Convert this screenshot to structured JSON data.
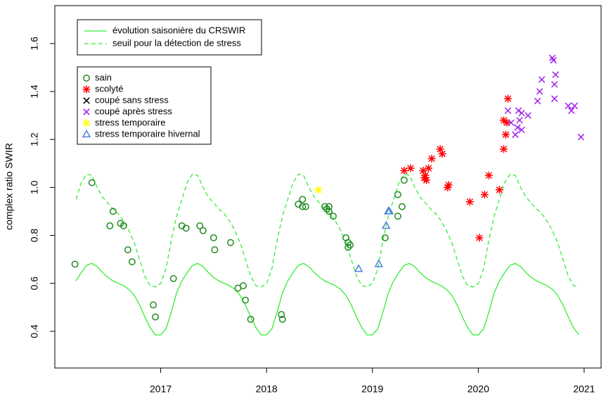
{
  "chart_data": {
    "type": "line",
    "ylabel": "complex ratio SWIR",
    "xlim": [
      2016.0,
      2021.16
    ],
    "ylim": [
      0.247,
      1.758
    ],
    "xticks": [
      2017,
      2018,
      2019,
      2020,
      2021
    ],
    "yticks": [
      0.4,
      0.6,
      0.8,
      {
        "value": 1,
        "label": "1.0"
      },
      1.2,
      1.4,
      1.6
    ],
    "x": [
      2016.2,
      2016.25,
      2016.3,
      2016.35,
      2016.4,
      2016.45,
      2016.5,
      2016.55,
      2016.6,
      2016.65,
      2016.7,
      2016.75,
      2016.8,
      2016.85,
      2016.9,
      2016.95,
      2017,
      2017.05,
      2017.1,
      2017.15,
      2017.2,
      2017.25,
      2017.3,
      2017.35,
      2017.4,
      2017.45,
      2017.5,
      2017.55,
      2017.6,
      2017.65,
      2017.7,
      2017.75,
      2017.8,
      2017.85,
      2017.9,
      2017.95,
      2018,
      2018.05,
      2018.1,
      2018.15,
      2018.2,
      2018.25,
      2018.3,
      2018.35,
      2018.4,
      2018.45,
      2018.5,
      2018.55,
      2018.6,
      2018.65,
      2018.7,
      2018.75,
      2018.8,
      2018.85,
      2018.9,
      2018.95,
      2019,
      2019.05,
      2019.1,
      2019.15,
      2019.2,
      2019.25,
      2019.3,
      2019.35,
      2019.4,
      2019.45,
      2019.5,
      2019.55,
      2019.6,
      2019.65,
      2019.7,
      2019.75,
      2019.8,
      2019.85,
      2019.9,
      2019.95,
      2020,
      2020.05,
      2020.1,
      2020.15,
      2020.2,
      2020.25,
      2020.3,
      2020.35,
      2020.4,
      2020.45,
      2020.5,
      2020.55,
      2020.6,
      2020.65,
      2020.7,
      2020.75,
      2020.8,
      2020.85,
      2020.9,
      2020.95
    ],
    "series": [
      {
        "name": "évolution saisonière du CRSWIR",
        "type": "line",
        "dash": false,
        "color": "#33ee33",
        "values": [
          0.61,
          0.645,
          0.675,
          0.683,
          0.67,
          0.645,
          0.625,
          0.61,
          0.6,
          0.59,
          0.575,
          0.55,
          0.51,
          0.46,
          0.415,
          0.385,
          0.385,
          0.41,
          0.48,
          0.56,
          0.61,
          0.645,
          0.675,
          0.683,
          0.67,
          0.645,
          0.625,
          0.61,
          0.6,
          0.59,
          0.575,
          0.55,
          0.51,
          0.46,
          0.415,
          0.385,
          0.385,
          0.41,
          0.48,
          0.56,
          0.61,
          0.645,
          0.675,
          0.683,
          0.67,
          0.645,
          0.625,
          0.61,
          0.6,
          0.59,
          0.575,
          0.55,
          0.51,
          0.46,
          0.415,
          0.385,
          0.385,
          0.41,
          0.48,
          0.56,
          0.61,
          0.645,
          0.675,
          0.683,
          0.67,
          0.645,
          0.625,
          0.61,
          0.6,
          0.59,
          0.575,
          0.55,
          0.51,
          0.46,
          0.415,
          0.385,
          0.385,
          0.41,
          0.48,
          0.56,
          0.61,
          0.645,
          0.675,
          0.683,
          0.67,
          0.645,
          0.625,
          0.61,
          0.6,
          0.59,
          0.575,
          0.55,
          0.51,
          0.46,
          0.415,
          0.385
        ]
      },
      {
        "name": "seuil pour la détection de stress",
        "type": "line",
        "dash": true,
        "color": "#33ee33",
        "values": [
          0.95,
          1.02,
          1.055,
          1.05,
          1.0,
          0.96,
          0.935,
          0.91,
          0.89,
          0.86,
          0.82,
          0.77,
          0.7,
          0.63,
          0.59,
          0.585,
          0.6,
          0.66,
          0.78,
          0.88,
          0.95,
          1.02,
          1.055,
          1.05,
          1.0,
          0.96,
          0.935,
          0.91,
          0.89,
          0.86,
          0.82,
          0.77,
          0.7,
          0.63,
          0.59,
          0.585,
          0.6,
          0.66,
          0.78,
          0.88,
          0.95,
          1.02,
          1.055,
          1.05,
          1.0,
          0.96,
          0.935,
          0.91,
          0.89,
          0.86,
          0.82,
          0.77,
          0.7,
          0.63,
          0.59,
          0.585,
          0.6,
          0.66,
          0.78,
          0.88,
          0.95,
          1.02,
          1.055,
          1.05,
          1.0,
          0.96,
          0.935,
          0.91,
          0.89,
          0.86,
          0.82,
          0.77,
          0.7,
          0.63,
          0.59,
          0.585,
          0.6,
          0.66,
          0.78,
          0.88,
          0.95,
          1.02,
          1.055,
          1.05,
          1.0,
          0.96,
          0.935,
          0.91,
          0.89,
          0.86,
          0.82,
          0.77,
          0.7,
          0.63,
          0.59,
          0.585
        ]
      },
      {
        "name": "sain",
        "type": "scatter",
        "marker": "circle",
        "color": "#228b22",
        "x": [
          2016.19,
          2016.35,
          2016.52,
          2016.55,
          2016.62,
          2016.65,
          2016.69,
          2016.73,
          2016.93,
          2016.95,
          2017.12,
          2017.2,
          2017.24,
          2017.37,
          2017.4,
          2017.5,
          2017.51,
          2017.66,
          2017.73,
          2017.78,
          2017.8,
          2017.85,
          2018.14,
          2018.15,
          2018.3,
          2018.34,
          2018.34,
          2018.37,
          2018.55,
          2018.57,
          2018.59,
          2018.59,
          2018.63,
          2018.75,
          2018.77,
          2018.77,
          2018.79,
          2019.12,
          2019.24,
          2019.24,
          2019.28,
          2019.3
        ],
        "values": [
          0.68,
          1.02,
          0.84,
          0.9,
          0.85,
          0.84,
          0.74,
          0.69,
          0.51,
          0.46,
          0.62,
          0.84,
          0.83,
          0.84,
          0.82,
          0.79,
          0.74,
          0.77,
          0.58,
          0.59,
          0.53,
          0.45,
          0.47,
          0.45,
          0.93,
          0.95,
          0.92,
          0.92,
          0.92,
          0.91,
          0.9,
          0.92,
          0.88,
          0.79,
          0.77,
          0.75,
          0.76,
          0.79,
          0.88,
          0.97,
          0.92,
          1.03
        ]
      },
      {
        "name": "scolyté",
        "type": "scatter",
        "marker": "asterisk",
        "color": "#ff0000",
        "x": [
          2019.3,
          2019.36,
          2019.48,
          2019.5,
          2019.49,
          2019.51,
          2019.53,
          2019.56,
          2019.64,
          2019.66,
          2019.71,
          2019.72,
          2019.92,
          2020.01,
          2020.06,
          2020.1,
          2020.2,
          2020.24,
          2020.24,
          2020.26,
          2020.28,
          2020.27
        ],
        "values": [
          1.07,
          1.08,
          1.07,
          1.05,
          1.04,
          1.03,
          1.08,
          1.12,
          1.16,
          1.14,
          1.0,
          1.01,
          0.94,
          0.79,
          0.97,
          1.05,
          0.99,
          1.16,
          1.28,
          1.22,
          1.37,
          1.27
        ]
      },
      {
        "name": "coupé sans stress",
        "type": "scatter",
        "marker": "cross",
        "color": "#000000",
        "x": [],
        "values": []
      },
      {
        "name": "coupé après stress",
        "type": "scatter",
        "marker": "cross",
        "color": "#a020f0",
        "x": [
          2020.28,
          2020.31,
          2020.35,
          2020.37,
          2020.38,
          2020.39,
          2020.41,
          2020.41,
          2020.47,
          2020.56,
          2020.58,
          2020.6,
          2020.7,
          2020.71,
          2020.73,
          2020.72,
          2020.72,
          2020.85,
          2020.88,
          2020.91,
          2020.97
        ],
        "values": [
          1.32,
          1.27,
          1.22,
          1.25,
          1.32,
          1.28,
          1.24,
          1.31,
          1.3,
          1.36,
          1.4,
          1.45,
          1.54,
          1.53,
          1.47,
          1.43,
          1.37,
          1.34,
          1.32,
          1.34,
          1.21
        ]
      },
      {
        "name": "stress temporaire",
        "type": "scatter",
        "marker": "asterisk",
        "color": "#ffff00",
        "x": [
          2018.49
        ],
        "values": [
          0.99
        ]
      },
      {
        "name": "stress temporaire hivernal",
        "type": "scatter",
        "marker": "triangle",
        "color": "#4f7fdf",
        "x": [
          2018.87,
          2019.06,
          2019.13,
          2019.15,
          2019.16
        ],
        "values": [
          0.66,
          0.68,
          0.84,
          0.9,
          0.9
        ]
      }
    ]
  }
}
